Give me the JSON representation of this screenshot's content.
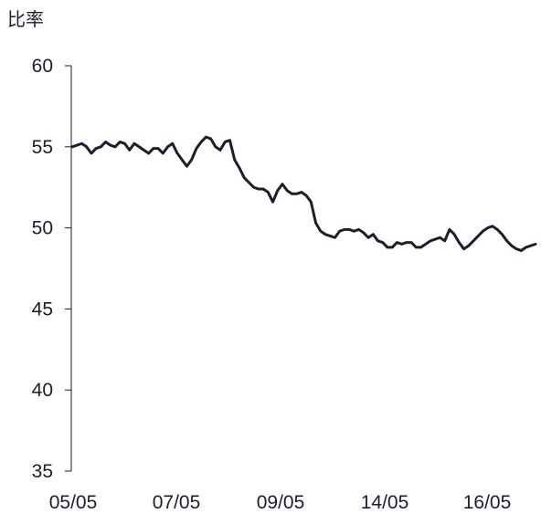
{
  "chart_data": {
    "type": "line",
    "ylabel": "比率",
    "xlabel": "",
    "title": "",
    "ylim": [
      35,
      60
    ],
    "yticks": [
      35,
      40,
      45,
      50,
      55,
      60
    ],
    "xtick_labels": [
      "05/05",
      "07/05",
      "09/05",
      "14/05",
      "16/05"
    ],
    "grid": false,
    "line_color": "#1b1f2a",
    "series": [
      {
        "values": [
          55.0,
          55.1,
          55.2,
          55.0,
          54.6,
          54.9,
          55.0,
          55.3,
          55.1,
          55.0,
          55.3,
          55.2,
          54.8,
          55.2,
          55.0,
          54.8,
          54.6,
          54.9,
          54.9,
          54.6,
          55.0,
          55.2,
          54.6,
          54.2,
          53.8,
          54.2,
          54.9,
          55.3,
          55.6,
          55.5,
          55.0,
          54.8,
          55.3,
          55.4,
          54.2,
          53.7,
          53.1,
          52.8,
          52.5,
          52.4,
          52.4,
          52.2,
          51.6,
          52.3,
          52.7,
          52.3,
          52.1,
          52.1,
          52.2,
          52.0,
          51.6,
          50.3,
          49.8,
          49.6,
          49.5,
          49.4,
          49.8,
          49.9,
          49.9,
          49.8,
          49.9,
          49.7,
          49.4,
          49.6,
          49.2,
          49.1,
          48.8,
          48.8,
          49.1,
          49.0,
          49.1,
          49.1,
          48.8,
          48.8,
          49.0,
          49.2,
          49.3,
          49.4,
          49.2,
          49.9,
          49.6,
          49.1,
          48.7,
          48.9,
          49.2,
          49.5,
          49.8,
          50.0,
          50.1,
          49.9,
          49.6,
          49.2,
          48.9,
          48.7,
          48.6,
          48.8,
          48.9,
          49.0
        ]
      }
    ]
  }
}
